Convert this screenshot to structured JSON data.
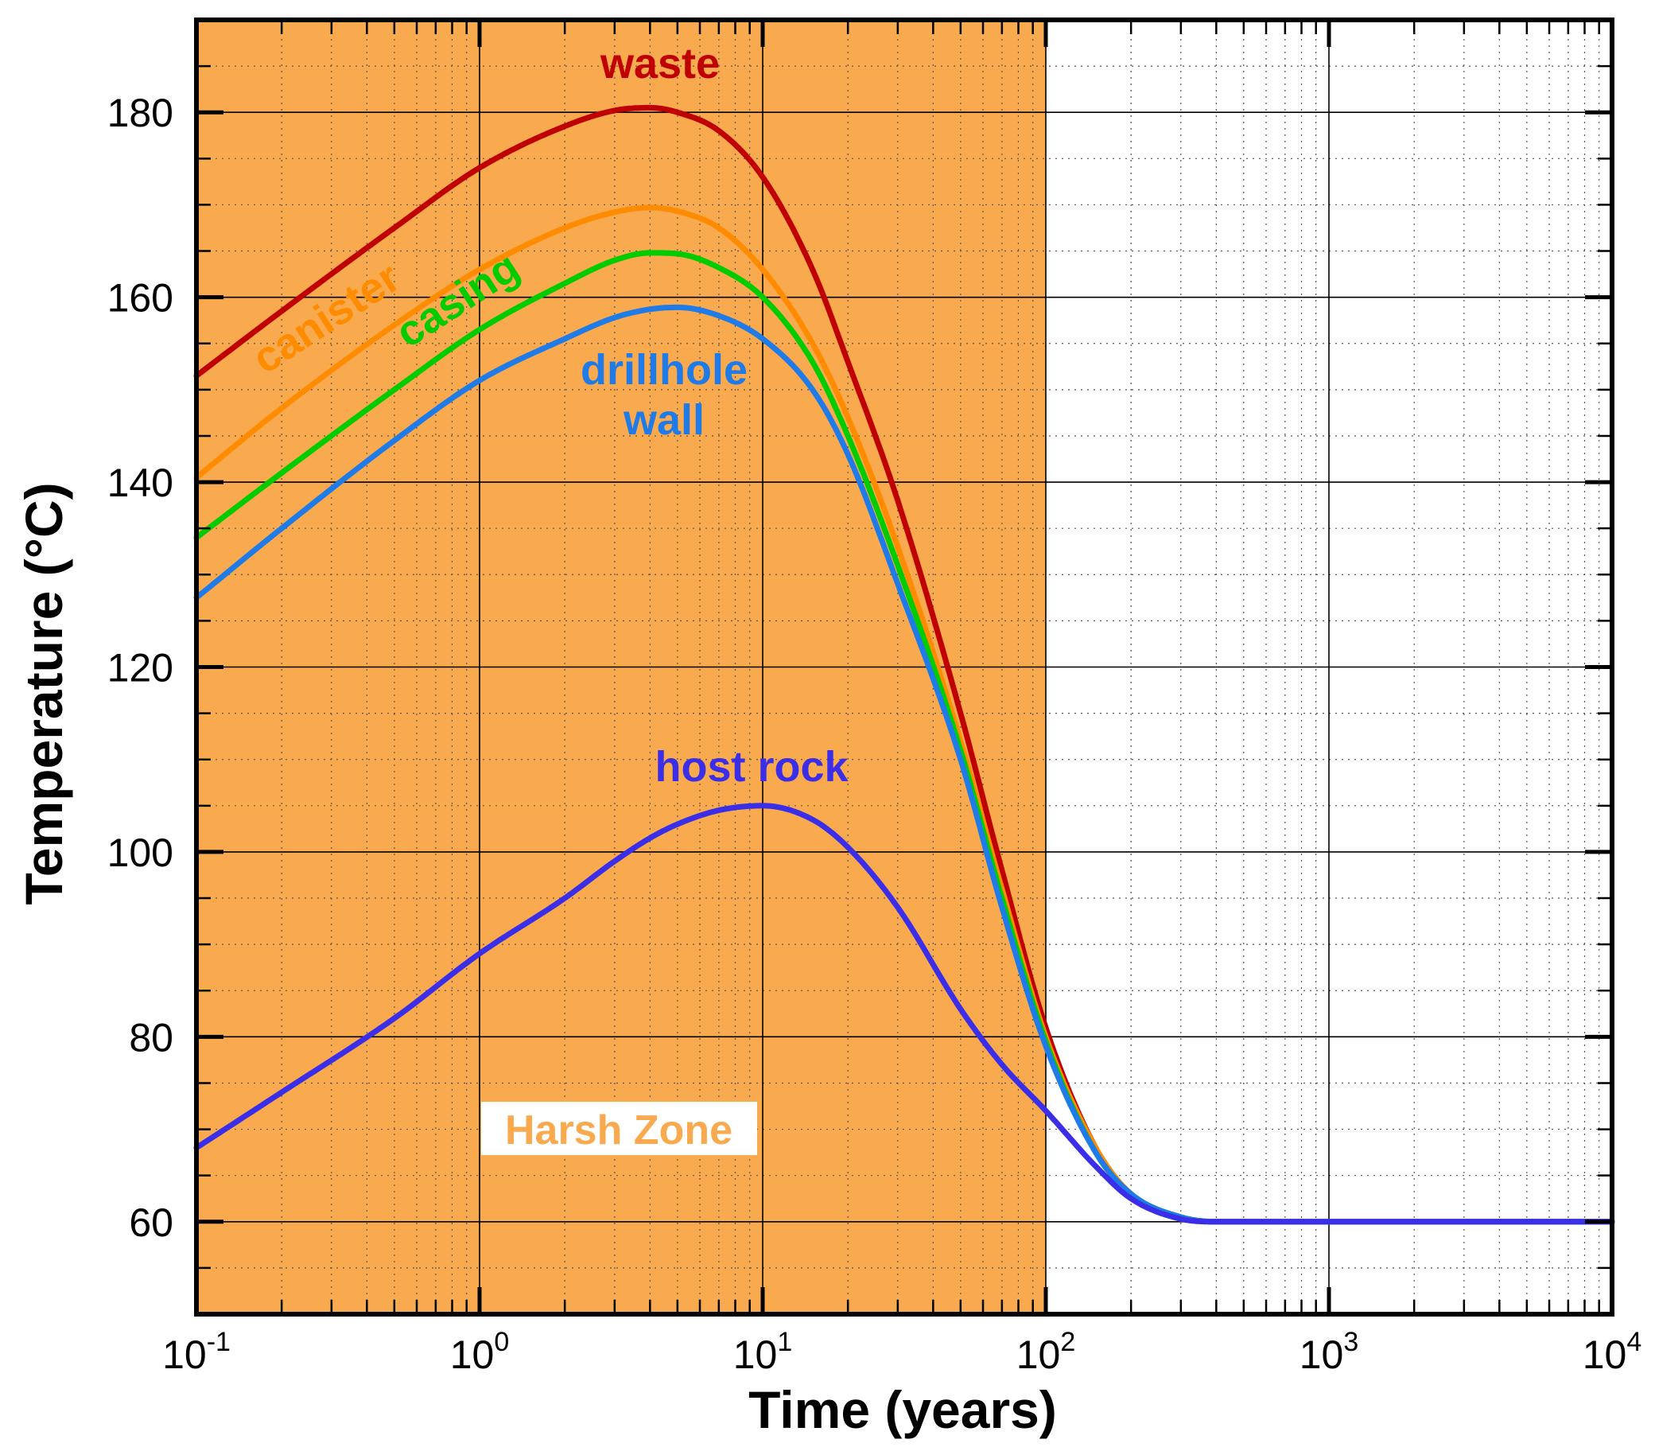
{
  "chart_data": {
    "type": "line",
    "xscale": "log",
    "xlabel": "Time (years)",
    "ylabel": "Temperature (°C)",
    "xlim": [
      0.1,
      10000
    ],
    "ylim": [
      50,
      190
    ],
    "grid": true,
    "x_ticks": [
      {
        "base": "10",
        "exp": "-1",
        "value": 0.1
      },
      {
        "base": "10",
        "exp": "0",
        "value": 1
      },
      {
        "base": "10",
        "exp": "1",
        "value": 10
      },
      {
        "base": "10",
        "exp": "2",
        "value": 100
      },
      {
        "base": "10",
        "exp": "3",
        "value": 1000
      },
      {
        "base": "10",
        "exp": "4",
        "value": 10000
      }
    ],
    "y_ticks": [
      "60",
      "80",
      "100",
      "120",
      "140",
      "160",
      "180"
    ],
    "zone": {
      "label": "Harsh Zone",
      "x_range": [
        0.1,
        100
      ],
      "color": "#F9A94E",
      "label_color": "#F9A94E"
    },
    "x": [
      0.1,
      0.2,
      0.5,
      1,
      2,
      3,
      4,
      5,
      7,
      10,
      15,
      20,
      30,
      50,
      70,
      100,
      150,
      200,
      300,
      400,
      1000,
      10000
    ],
    "series": [
      {
        "name": "waste",
        "color": "#C00000",
        "values": [
          151.5,
          158.5,
          167.5,
          174,
          178.5,
          180.2,
          180.5,
          180,
          178,
          173,
          163,
          153,
          138,
          115,
          98,
          81,
          68,
          63,
          60.5,
          60,
          60,
          60
        ]
      },
      {
        "name": "canister",
        "color": "#FF8C00",
        "values": [
          140.5,
          148,
          157,
          163,
          167.5,
          169.2,
          169.7,
          169.3,
          167.5,
          163,
          155,
          147,
          133,
          112,
          96,
          80,
          68,
          63,
          60.5,
          60,
          60,
          60
        ]
      },
      {
        "name": "casing",
        "color": "#00CC00",
        "values": [
          134,
          141,
          150,
          156.5,
          161.5,
          164,
          164.8,
          164.7,
          163.2,
          160,
          153,
          145,
          131,
          111,
          95,
          79.5,
          67.5,
          63,
          60.5,
          60,
          60,
          60
        ]
      },
      {
        "name": "drillhole wall",
        "label_lines": [
          "drillhole",
          "wall"
        ],
        "color": "#1E7BE8",
        "values": [
          127.5,
          135,
          144.5,
          151,
          155.5,
          157.8,
          158.7,
          158.9,
          158,
          155.5,
          150,
          143,
          129,
          110,
          94,
          79,
          67.5,
          63,
          60.5,
          60,
          60,
          60
        ]
      },
      {
        "name": "host rock",
        "color": "#3A2EE8",
        "values": [
          68,
          74,
          82,
          89,
          95,
          99,
          101.5,
          103,
          104.5,
          105,
          103.5,
          100.5,
          94,
          83,
          77,
          72,
          66,
          62.5,
          60.3,
          60,
          60,
          60
        ]
      }
    ]
  }
}
